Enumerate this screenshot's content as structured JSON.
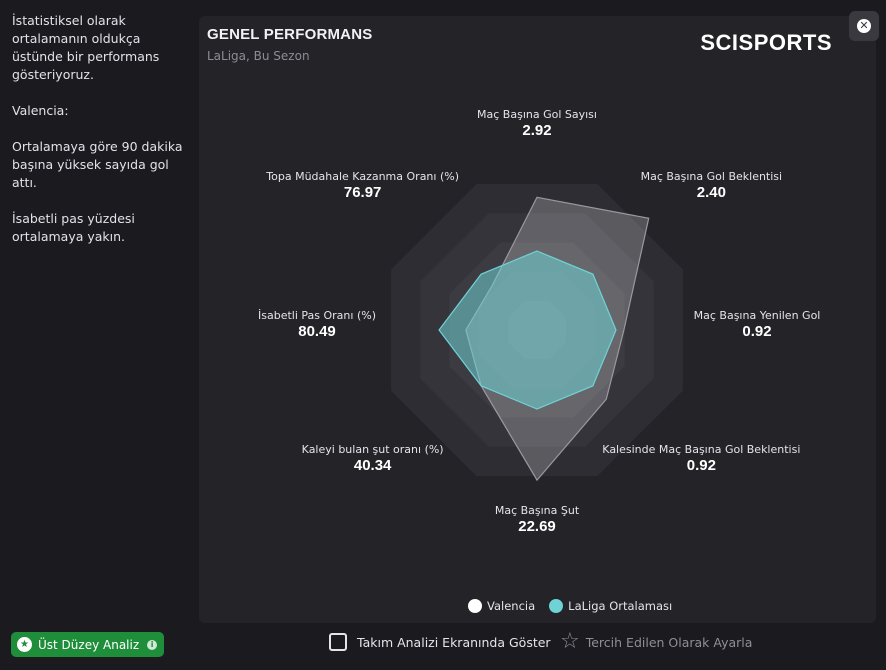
{
  "sidebar": {
    "para1": "İstatistiksel olarak ortalamanın oldukça üstünde bir performans gösteriyoruz.",
    "para2": "Valencia:",
    "para3": "Ortalamaya göre 90 dakika başına yüksek sayıda gol attı.",
    "para4": "İsabetli pas yüzdesi ortalamaya yakın."
  },
  "panel": {
    "title": "GENEL PERFORMANS",
    "subtitle": "LaLiga, Bu Sezon",
    "logo_text": "SCISPORTS",
    "close_icon": "close-icon"
  },
  "chart_data": {
    "type": "radar",
    "axes": [
      {
        "label": "Maç Başına Gol Sayısı",
        "value": "2.92"
      },
      {
        "label": "Maç Başına Gol Beklentisi",
        "value": "2.40"
      },
      {
        "label": "Maç Başına Yenilen Gol",
        "value": "0.92"
      },
      {
        "label": "Kalesinde Maç Başına Gol Beklentisi",
        "value": "0.92"
      },
      {
        "label": "Maç Başına Şut",
        "value": "22.69"
      },
      {
        "label": "Kaleyi bulan şut oranı (%)",
        "value": "40.34"
      },
      {
        "label": "İsabetli Pas Oranı (%)",
        "value": "80.49"
      },
      {
        "label": "Topa Müdahale Kazanma Oranı (%)",
        "value": "76.97"
      }
    ],
    "series": [
      {
        "name": "Valencia",
        "color": "#ffffff",
        "values": [
          0.84,
          1.0,
          0.55,
          0.62,
          0.95,
          0.5,
          0.45,
          0.4
        ]
      },
      {
        "name": "LaLiga Ortalaması",
        "color": "#6fd3d6",
        "values": [
          0.5,
          0.5,
          0.5,
          0.5,
          0.5,
          0.5,
          0.62,
          0.5
        ]
      }
    ],
    "legend_position": "bottom",
    "scale": [
      0,
      1
    ]
  },
  "legend": {
    "team": "Valencia",
    "average": "LaLiga Ortalaması"
  },
  "footer": {
    "premium_label": "Üst Düzey Analiz",
    "premium_icon": "star-badge-icon",
    "info_icon": "info-icon",
    "show_checkbox_label": "Takım Analizi Ekranında Göster",
    "favorite_label": "Tercih Edilen Olarak Ayarla",
    "favorite_icon": "star-outline-icon"
  }
}
